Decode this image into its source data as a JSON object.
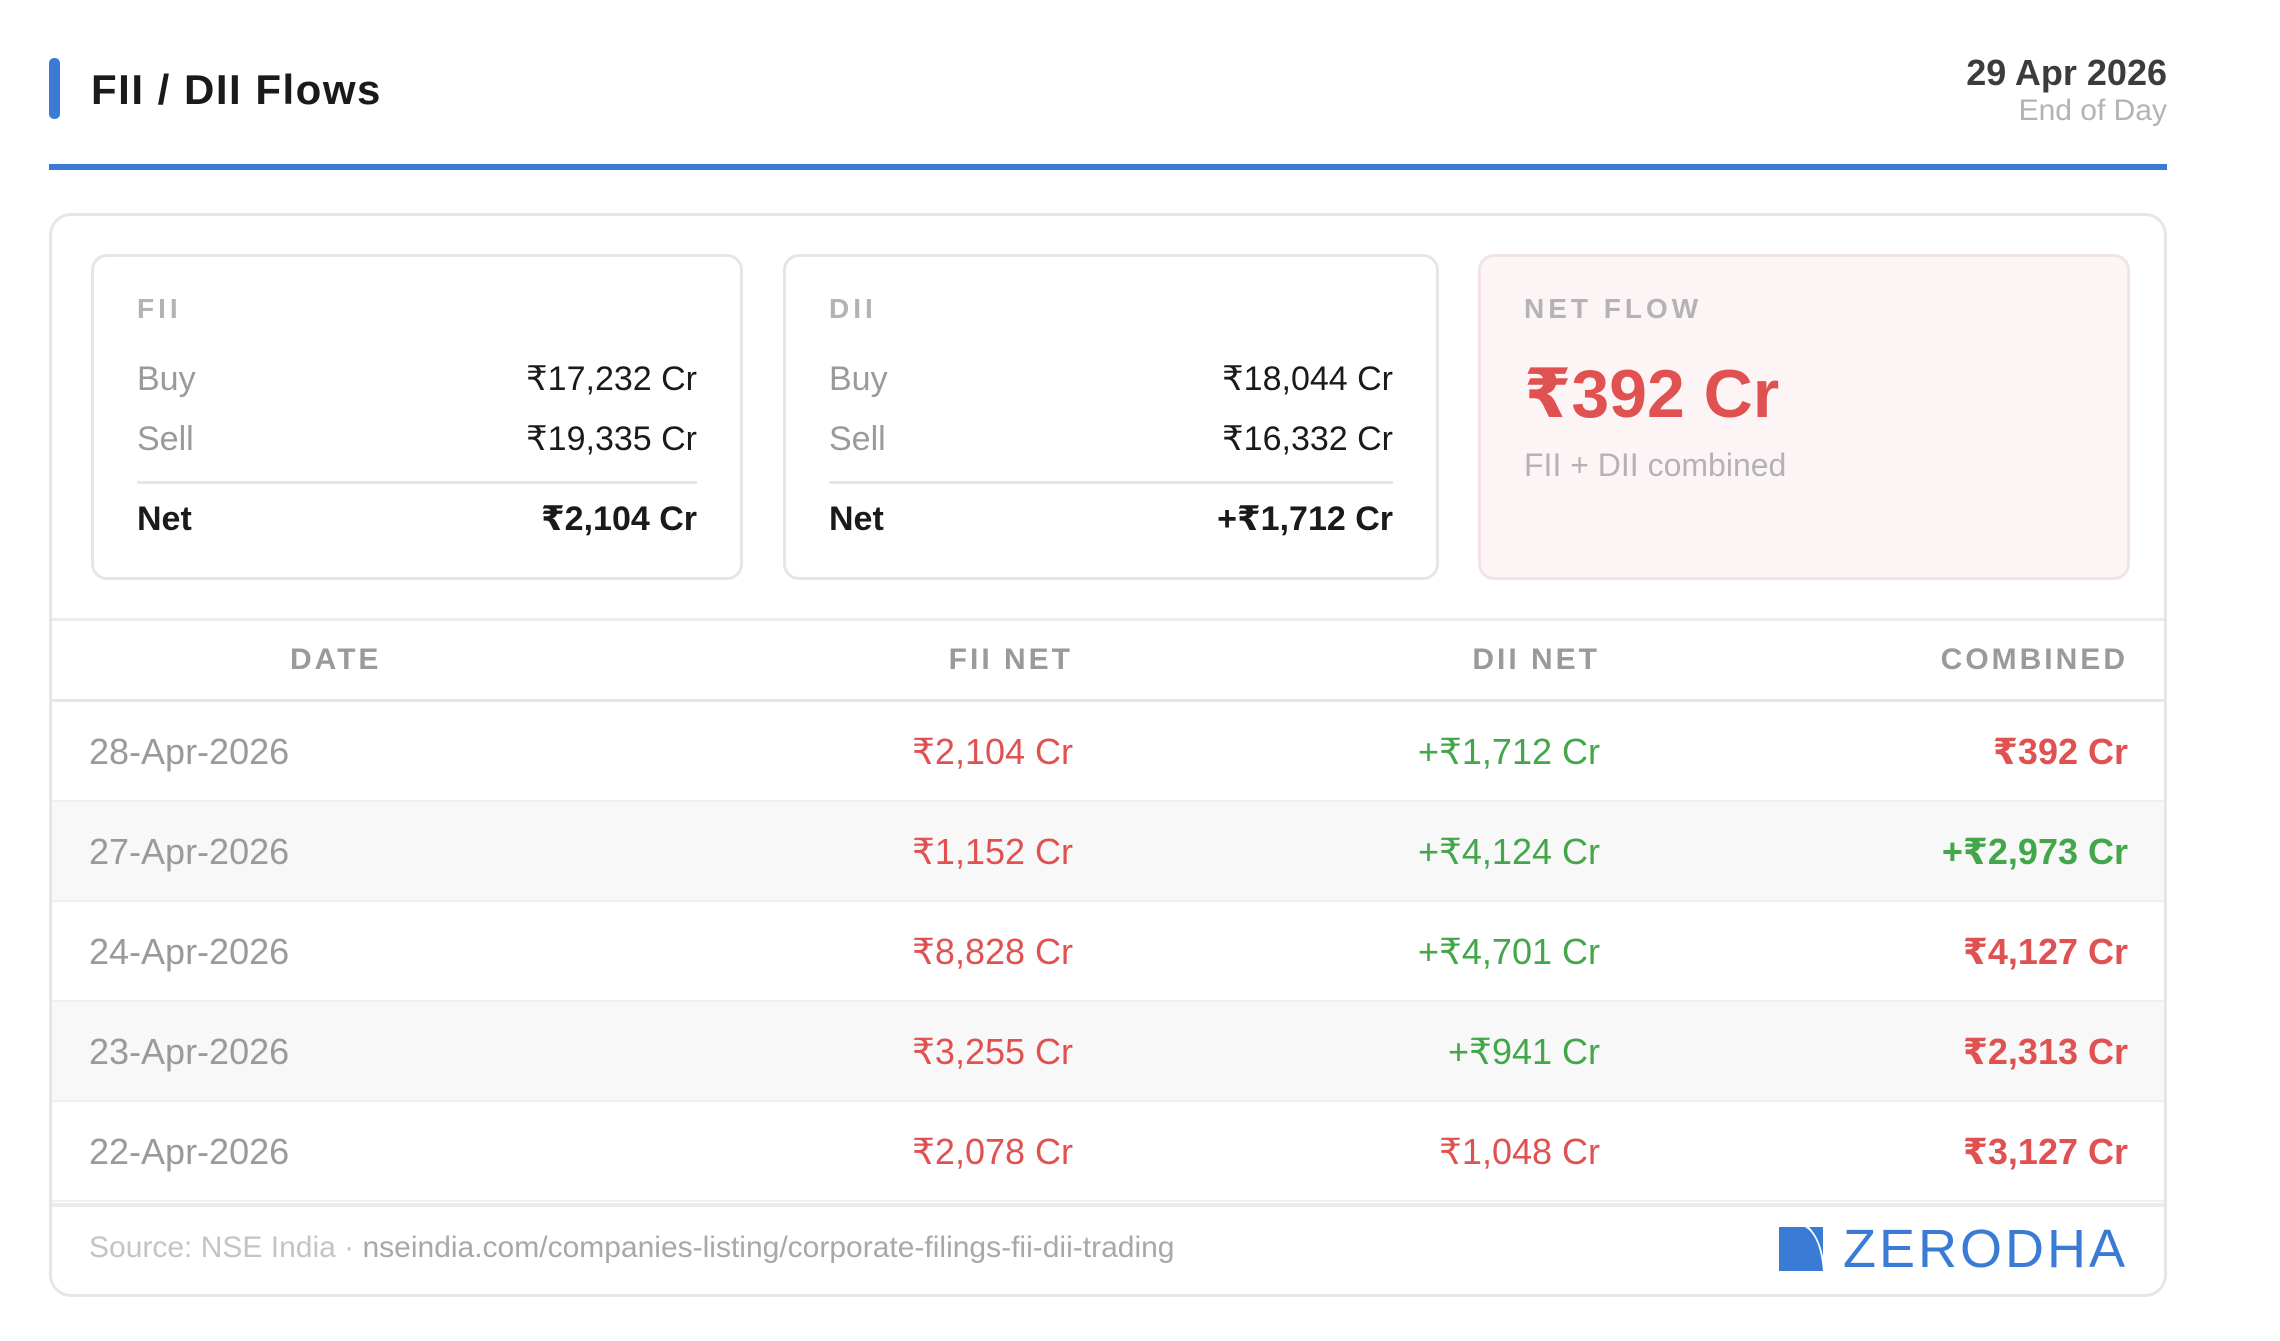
{
  "header": {
    "title": "FII / DII Flows",
    "date": "29 Apr 2026",
    "subtitle": "End of Day"
  },
  "colors": {
    "accent": "#3a7bd5",
    "negative": "#e05252",
    "positive": "#43a64a"
  },
  "summary": {
    "fii": {
      "label": "FII",
      "buy_label": "Buy",
      "buy": "₹17,232 Cr",
      "sell_label": "Sell",
      "sell": "₹19,335 Cr",
      "net_label": "Net",
      "net": "₹2,104 Cr"
    },
    "dii": {
      "label": "DII",
      "buy_label": "Buy",
      "buy": "₹18,044 Cr",
      "sell_label": "Sell",
      "sell": "₹16,332 Cr",
      "net_label": "Net",
      "net": "+₹1,712 Cr"
    },
    "net_flow": {
      "label": "NET FLOW",
      "value": "₹392 Cr",
      "subtitle": "FII + DII combined"
    }
  },
  "table": {
    "headers": [
      "DATE",
      "FII NET",
      "DII NET",
      "COMBINED"
    ],
    "rows": [
      {
        "date": "28-Apr-2026",
        "fii": "₹2,104 Cr",
        "dii": "+₹1,712 Cr",
        "combined": "₹392 Cr"
      },
      {
        "date": "27-Apr-2026",
        "fii": "₹1,152 Cr",
        "dii": "+₹4,124 Cr",
        "combined": "+₹2,973 Cr"
      },
      {
        "date": "24-Apr-2026",
        "fii": "₹8,828 Cr",
        "dii": "+₹4,701 Cr",
        "combined": "₹4,127 Cr"
      },
      {
        "date": "23-Apr-2026",
        "fii": "₹3,255 Cr",
        "dii": "+₹941 Cr",
        "combined": "₹2,313 Cr"
      },
      {
        "date": "22-Apr-2026",
        "fii": "₹2,078 Cr",
        "dii": "₹1,048 Cr",
        "combined": "₹3,127 Cr"
      }
    ]
  },
  "footer": {
    "source_prefix": "Source: NSE India ·",
    "source_url": "nseindia.com/companies-listing/corporate-filings-fii-dii-trading",
    "brand": "ZERODHA",
    "brand_icon": "zerodha-logo-icon"
  }
}
